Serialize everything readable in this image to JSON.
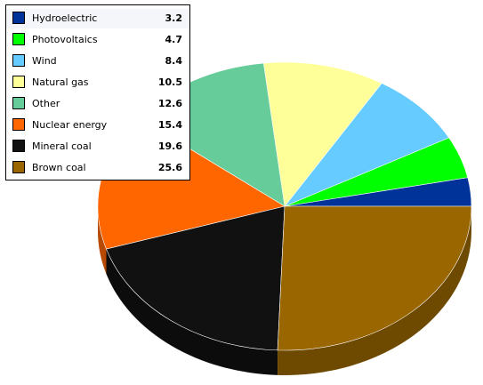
{
  "chart_data": {
    "type": "pie",
    "style": "3d",
    "legend_position": "top-left",
    "title": "",
    "slices": [
      {
        "label": "Hydroelectric",
        "value": 3.2,
        "color": "#003399"
      },
      {
        "label": "Photovoltaics",
        "value": 4.7,
        "color": "#00ff00"
      },
      {
        "label": "Wind",
        "value": 8.4,
        "color": "#66ccff"
      },
      {
        "label": "Natural gas",
        "value": 10.5,
        "color": "#ffff99"
      },
      {
        "label": "Other",
        "value": 12.6,
        "color": "#66cc99"
      },
      {
        "label": "Nuclear energy",
        "value": 15.4,
        "color": "#ff6600"
      },
      {
        "label": "Mineral coal",
        "value": 19.6,
        "color": "#111111"
      },
      {
        "label": "Brown coal",
        "value": 25.6,
        "color": "#996600"
      }
    ]
  }
}
